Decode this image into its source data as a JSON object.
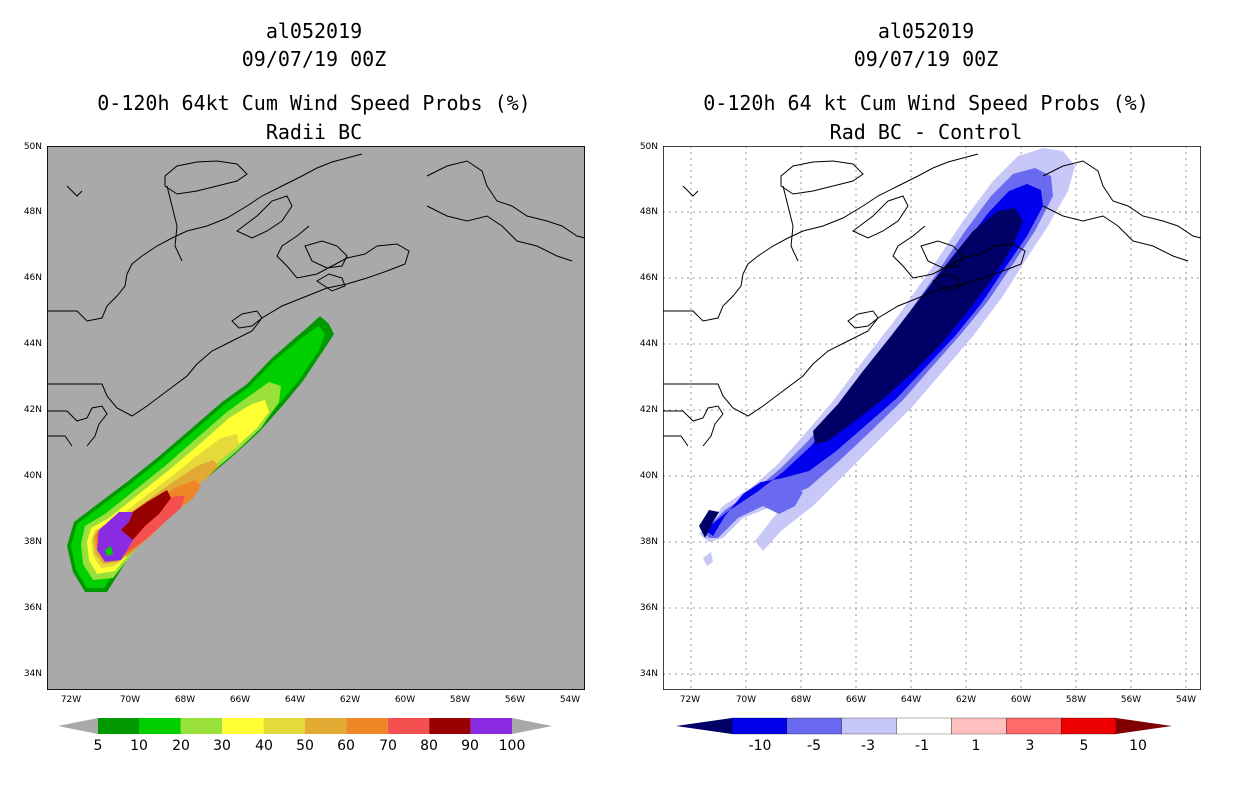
{
  "left": {
    "storm_id": "al052019",
    "datetime": "09/07/19 00Z",
    "title": "0-120h 64kt Cum Wind Speed Probs (%)",
    "subtitle": "Radii BC",
    "background_color": "#a9a9a9",
    "colorbar_labels": [
      "5",
      "10",
      "20",
      "30",
      "40",
      "50",
      "60",
      "70",
      "80",
      "90",
      "100"
    ],
    "colorbar_colors": [
      "#009900",
      "#00d000",
      "#99e03a",
      "#ffff33",
      "#e6d93a",
      "#e3aa33",
      "#f08528",
      "#f45050",
      "#990000",
      "#8a2be2"
    ]
  },
  "right": {
    "storm_id": "al052019",
    "datetime": "09/07/19 00Z",
    "title": "0-120h 64 kt Cum Wind Speed Probs (%)",
    "subtitle": "Rad BC - Control",
    "background_color": "#ffffff",
    "colorbar_labels": [
      "-10",
      "-5",
      "-3",
      "-1",
      "1",
      "3",
      "5",
      "10"
    ],
    "colorbar_colors": [
      "#000066",
      "#0000ee",
      "#6a6af0",
      "#c8c8f8",
      "#ffffff",
      "#ffc0c0",
      "#ff6a6a",
      "#ee0000",
      "#800000"
    ]
  },
  "lat_labels": [
    "50N",
    "48N",
    "46N",
    "44N",
    "42N",
    "40N",
    "38N",
    "36N",
    "34N"
  ],
  "lon_labels": [
    "72W",
    "70W",
    "68W",
    "66W",
    "64W",
    "62W",
    "60W",
    "58W",
    "56W",
    "54W"
  ]
}
